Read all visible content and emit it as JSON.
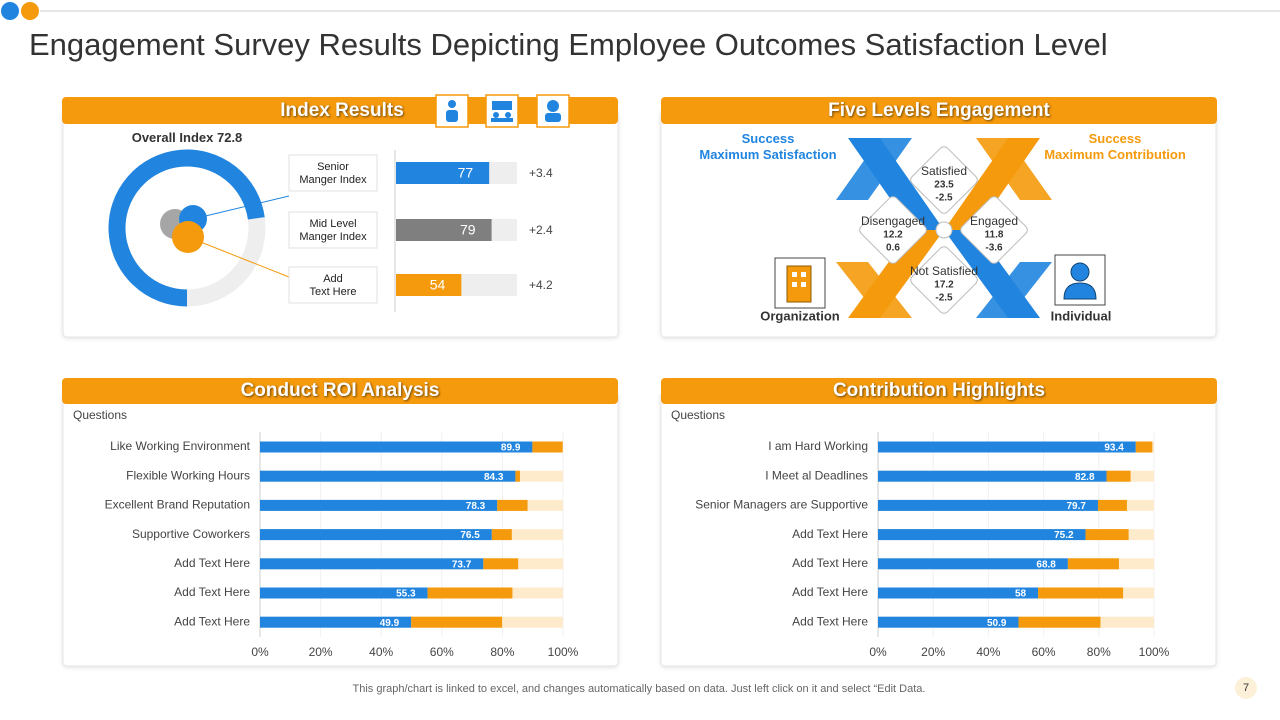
{
  "title": "Engagement Survey Results Depicting Employee Outcomes Satisfaction Level",
  "footer": "This graph/chart is linked to excel,  and changes automatically based on data. Just left click on it and select “Edit Data.",
  "page_number": 7,
  "chart_data": [
    {
      "type": "index",
      "title": "Index Results",
      "overall_label": "Overall Index",
      "overall_value": 72.8,
      "categories": [
        [
          "Senior",
          "Manger Index"
        ],
        [
          "Mid Level",
          "Manger Index"
        ],
        [
          "Add",
          "Text Here"
        ]
      ],
      "values": [
        77,
        79,
        54
      ],
      "colors": [
        "#2185e0",
        "#7f7f7f",
        "#f59a0c"
      ],
      "changes": [
        "+3.4",
        "+2.4",
        "+4.2"
      ],
      "xlim": [
        0,
        100
      ]
    },
    {
      "type": "stacked_hbar",
      "title": "Conduct ROI Analysis",
      "ylabel": "Questions",
      "categories": [
        "Like Working Environment",
        "Flexible Working Hours",
        "Excellent Brand Reputation",
        "Supportive Coworkers",
        "Add Text Here",
        "Add Text Here",
        "Add Text Here"
      ],
      "series": [
        {
          "color": "#2185e0",
          "values": [
            89.9,
            84.3,
            78.3,
            76.5,
            73.7,
            55.3,
            49.9
          ]
        },
        {
          "color": "#f59a0c",
          "values": [
            10,
            1.5,
            10,
            6.6,
            11.5,
            28,
            30
          ]
        }
      ],
      "track_color": "#fdebcc",
      "xlim": [
        0,
        100
      ],
      "xticks": [
        {
          "value": 0,
          "label": "0%"
        },
        {
          "value": 20,
          "label": "20%"
        },
        {
          "value": 40,
          "label": "40%"
        },
        {
          "value": 60,
          "label": "60%"
        },
        {
          "value": 80,
          "label": "80%"
        },
        {
          "value": 100,
          "label": "100%"
        }
      ]
    },
    {
      "type": "stacked_hbar",
      "title": "Contribution Highlights",
      "ylabel": "Questions",
      "categories": [
        "I am Hard Working",
        "I Meet al Deadlines",
        "Senior Managers are Supportive",
        "Add Text Here",
        "Add Text Here",
        "Add Text Here",
        "Add Text Here"
      ],
      "series": [
        {
          "color": "#2185e0",
          "values": [
            93.4,
            82.8,
            79.7,
            75.2,
            68.8,
            58,
            50.9
          ]
        },
        {
          "color": "#f59a0c",
          "values": [
            6,
            8.7,
            10.5,
            15.6,
            18.5,
            30.8,
            29.7
          ]
        }
      ],
      "track_color": "#fdebcc",
      "xlim": [
        0,
        100
      ],
      "xticks": [
        {
          "value": 0,
          "label": "0%"
        },
        {
          "value": 20,
          "label": "20%"
        },
        {
          "value": 40,
          "label": "40%"
        },
        {
          "value": 60,
          "label": "60%"
        },
        {
          "value": 80,
          "label": "80%"
        },
        {
          "value": 100,
          "label": "100%"
        }
      ]
    }
  ],
  "five_levels": {
    "title": "Five Levels Engagement",
    "left_label": [
      "Success",
      "Maximum Satisfaction"
    ],
    "right_label": [
      "Success",
      "Maximum Contribution"
    ],
    "nodes": [
      {
        "label": "Satisfied",
        "value": 23.5,
        "change": -2.5
      },
      {
        "label": "Disengaged",
        "value": 12.2,
        "change": 0.6
      },
      {
        "label": "Engaged",
        "value": 11.8,
        "change": -3.6
      },
      {
        "label": "Not Satisfied",
        "value": 17.2,
        "change": -2.5
      }
    ],
    "organization": "Organization",
    "individual": "Individual"
  }
}
